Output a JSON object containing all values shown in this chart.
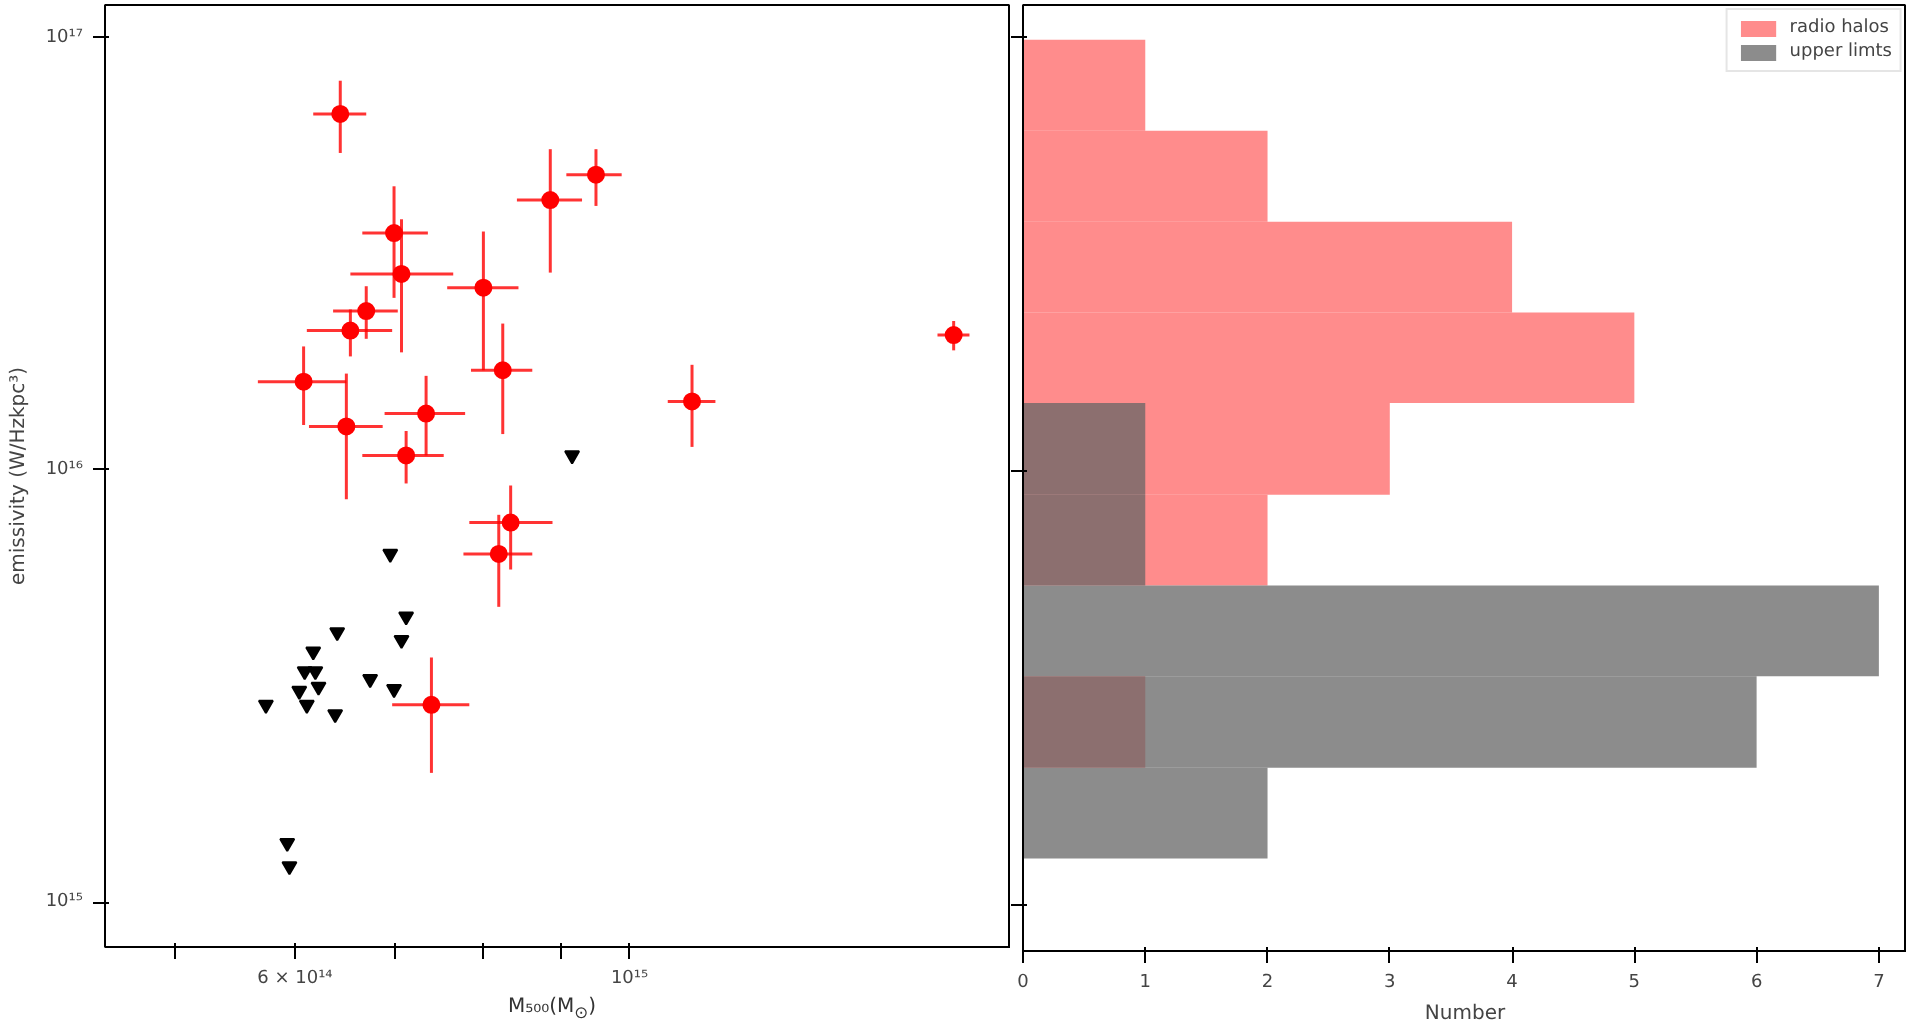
{
  "chart_data": [
    {
      "type": "scatter",
      "xlabel": "M₅₀₀(M$_{⊙}$)",
      "ylabel": "emissivity (W/Hzkpc³)",
      "log": "xy",
      "xlim": [
        449000000000000.0,
        1790000000000000.0
      ],
      "ylim": [
        787000000000000.0,
        1.19e+17
      ],
      "xticks": [
        {
          "value": 500000000000000.0,
          "label": null
        },
        {
          "value": 600000000000000.0,
          "label": "6 × 10¹⁴"
        },
        {
          "value": 700000000000000.0,
          "label": null
        },
        {
          "value": 800000000000000.0,
          "label": null
        },
        {
          "value": 900000000000000.0,
          "label": null
        },
        {
          "value": 1000000000000000.0,
          "label": "10¹⁵"
        }
      ],
      "yticks": [
        {
          "value": 1000000000000000.0,
          "label": "10¹⁵"
        },
        {
          "value": 1e+16,
          "label": "10¹⁶"
        },
        {
          "value": 1e+17,
          "label": "10¹⁷"
        }
      ],
      "series": [
        {
          "color": "#ff0000",
          "marker": "circle",
          "x": [
            643000000000000.0,
            886000000000000.0,
            950000000000000.0,
            698000000000000.0,
            706000000000000.0,
            800000000000000.0,
            669000000000000.0,
            653000000000000.0,
            824000000000000.0,
            608000000000000.0,
            649000000000000.0,
            733000000000000.0,
            711000000000000.0,
            1100000000000000.0,
            1640000000000000.0,
            834000000000000.0,
            819000000000000.0,
            739000000000000.0
          ],
          "values": [
            6.66e+16,
            4.21e+16,
            4.82e+16,
            3.53e+16,
            2.84e+16,
            2.64e+16,
            2.33e+16,
            2.1e+16,
            1.7e+16,
            1.6e+16,
            1.26e+16,
            1.35e+16,
            1.08e+16,
            1.44e+16,
            2.05e+16,
            7550000000000000.0,
            6390000000000000.0,
            2860000000000000.0
          ],
          "xerrors": [
            [
              617000000000000.0,
              669000000000000.0
            ],
            [
              842000000000000.0,
              930000000000000.0
            ],
            [
              908000000000000.0,
              988000000000000.0
            ],
            [
              665000000000000.0,
              735000000000000.0
            ],
            [
              653000000000000.0,
              764000000000000.0
            ],
            [
              757000000000000.0,
              844000000000000.0
            ],
            [
              636000000000000.0,
              702000000000000.0
            ],
            [
              611000000000000.0,
              696000000000000.0
            ],
            [
              785000000000000.0,
              862000000000000.0
            ],
            [
              567000000000000.0,
              649000000000000.0
            ],
            [
              613000000000000.0,
              686000000000000.0
            ],
            [
              688000000000000.0,
              778000000000000.0
            ],
            [
              665000000000000.0,
              753000000000000.0
            ],
            [
              1060000000000000.0,
              1140000000000000.0
            ],
            [
              1600000000000000.0,
              1680000000000000.0
            ],
            [
              783000000000000.0,
              889000000000000.0
            ],
            [
              776000000000000.0,
              862000000000000.0
            ],
            [
              696000000000000.0,
              783000000000000.0
            ]
          ],
          "errors": [
            [
              5.41e+16,
              7.95e+16
            ],
            [
              2.86e+16,
              5.52e+16
            ],
            [
              4.08e+16,
              5.52e+16
            ],
            [
              2.5e+16,
              4.53e+16
            ],
            [
              1.87e+16,
              3.8e+16
            ],
            [
              1.7e+16,
              3.56e+16
            ],
            [
              2.01e+16,
              2.66e+16
            ],
            [
              1.83e+16,
              2.35e+16
            ],
            [
              1.21e+16,
              2.18e+16
            ],
            [
              1.27e+16,
              1.93e+16
            ],
            [
              8550000000000000.0,
              1.67e+16
            ],
            [
              1.08e+16,
              1.65e+16
            ],
            [
              9300000000000000.0,
              1.23e+16
            ],
            [
              1.13e+16,
              1.75e+16
            ],
            [
              1.89e+16,
              2.21e+16
            ],
            [
              5880000000000000.0,
              9200000000000000.0
            ],
            [
              4820000000000000.0,
              7870000000000000.0
            ],
            [
              1990000000000000.0,
              3680000000000000.0
            ]
          ]
        },
        {
          "color": "#000000",
          "marker": "triangle",
          "x": [
            916000000000000.0,
            694000000000000.0,
            711000000000000.0,
            706000000000000.0,
            640000000000000.0,
            617000000000000.0,
            609000000000000.0,
            619000000000000.0,
            604000000000000.0,
            622000000000000.0,
            673000000000000.0,
            698000000000000.0,
            574000000000000.0,
            611000000000000.0,
            638000000000000.0,
            593000000000000.0,
            595000000000000.0
          ],
          "values": [
            1.08e+16,
            6390000000000000.0,
            4580000000000000.0,
            4040000000000000.0,
            4210000000000000.0,
            3800000000000000.0,
            3420000000000000.0,
            3420000000000000.0,
            3080000000000000.0,
            3150000000000000.0,
            3280000000000000.0,
            3110000000000000.0,
            2860000000000000.0,
            2860000000000000.0,
            2720000000000000.0,
            1370000000000000.0,
            1210000000000000.0
          ]
        }
      ]
    },
    {
      "type": "histogram",
      "orientation": "horizontal",
      "xlabel": "Number",
      "log": "y",
      "legend": "top right",
      "tick_labels": "x",
      "bins": [
        1285000000000000.0,
        2080000000000000.0,
        3380000000000000.0,
        5470000000000000.0,
        8860000000000000.0,
        1.44e+16,
        2.33e+16,
        3.77e+16,
        6.11e+16,
        9.9e+16
      ],
      "xlim": [
        0,
        7.23
      ],
      "ylim": [
        787000000000000.0,
        1.19e+17
      ],
      "xticks": [
        0,
        1,
        2,
        3,
        4,
        5,
        6,
        7
      ],
      "yticks": [
        {
          "value": 1000000000000000.0,
          "label": null
        },
        {
          "value": 1e+16,
          "label": null
        },
        {
          "value": 1e+17,
          "label": null
        }
      ],
      "series": [
        {
          "name": "radio halos",
          "color": "#ff6666",
          "values": [
            0,
            1,
            0,
            2,
            3,
            5,
            4,
            2,
            1
          ]
        },
        {
          "name": "upper limts",
          "color": "#666666",
          "values": [
            2,
            6,
            7,
            1,
            1,
            0,
            0,
            0,
            0
          ]
        }
      ]
    }
  ]
}
